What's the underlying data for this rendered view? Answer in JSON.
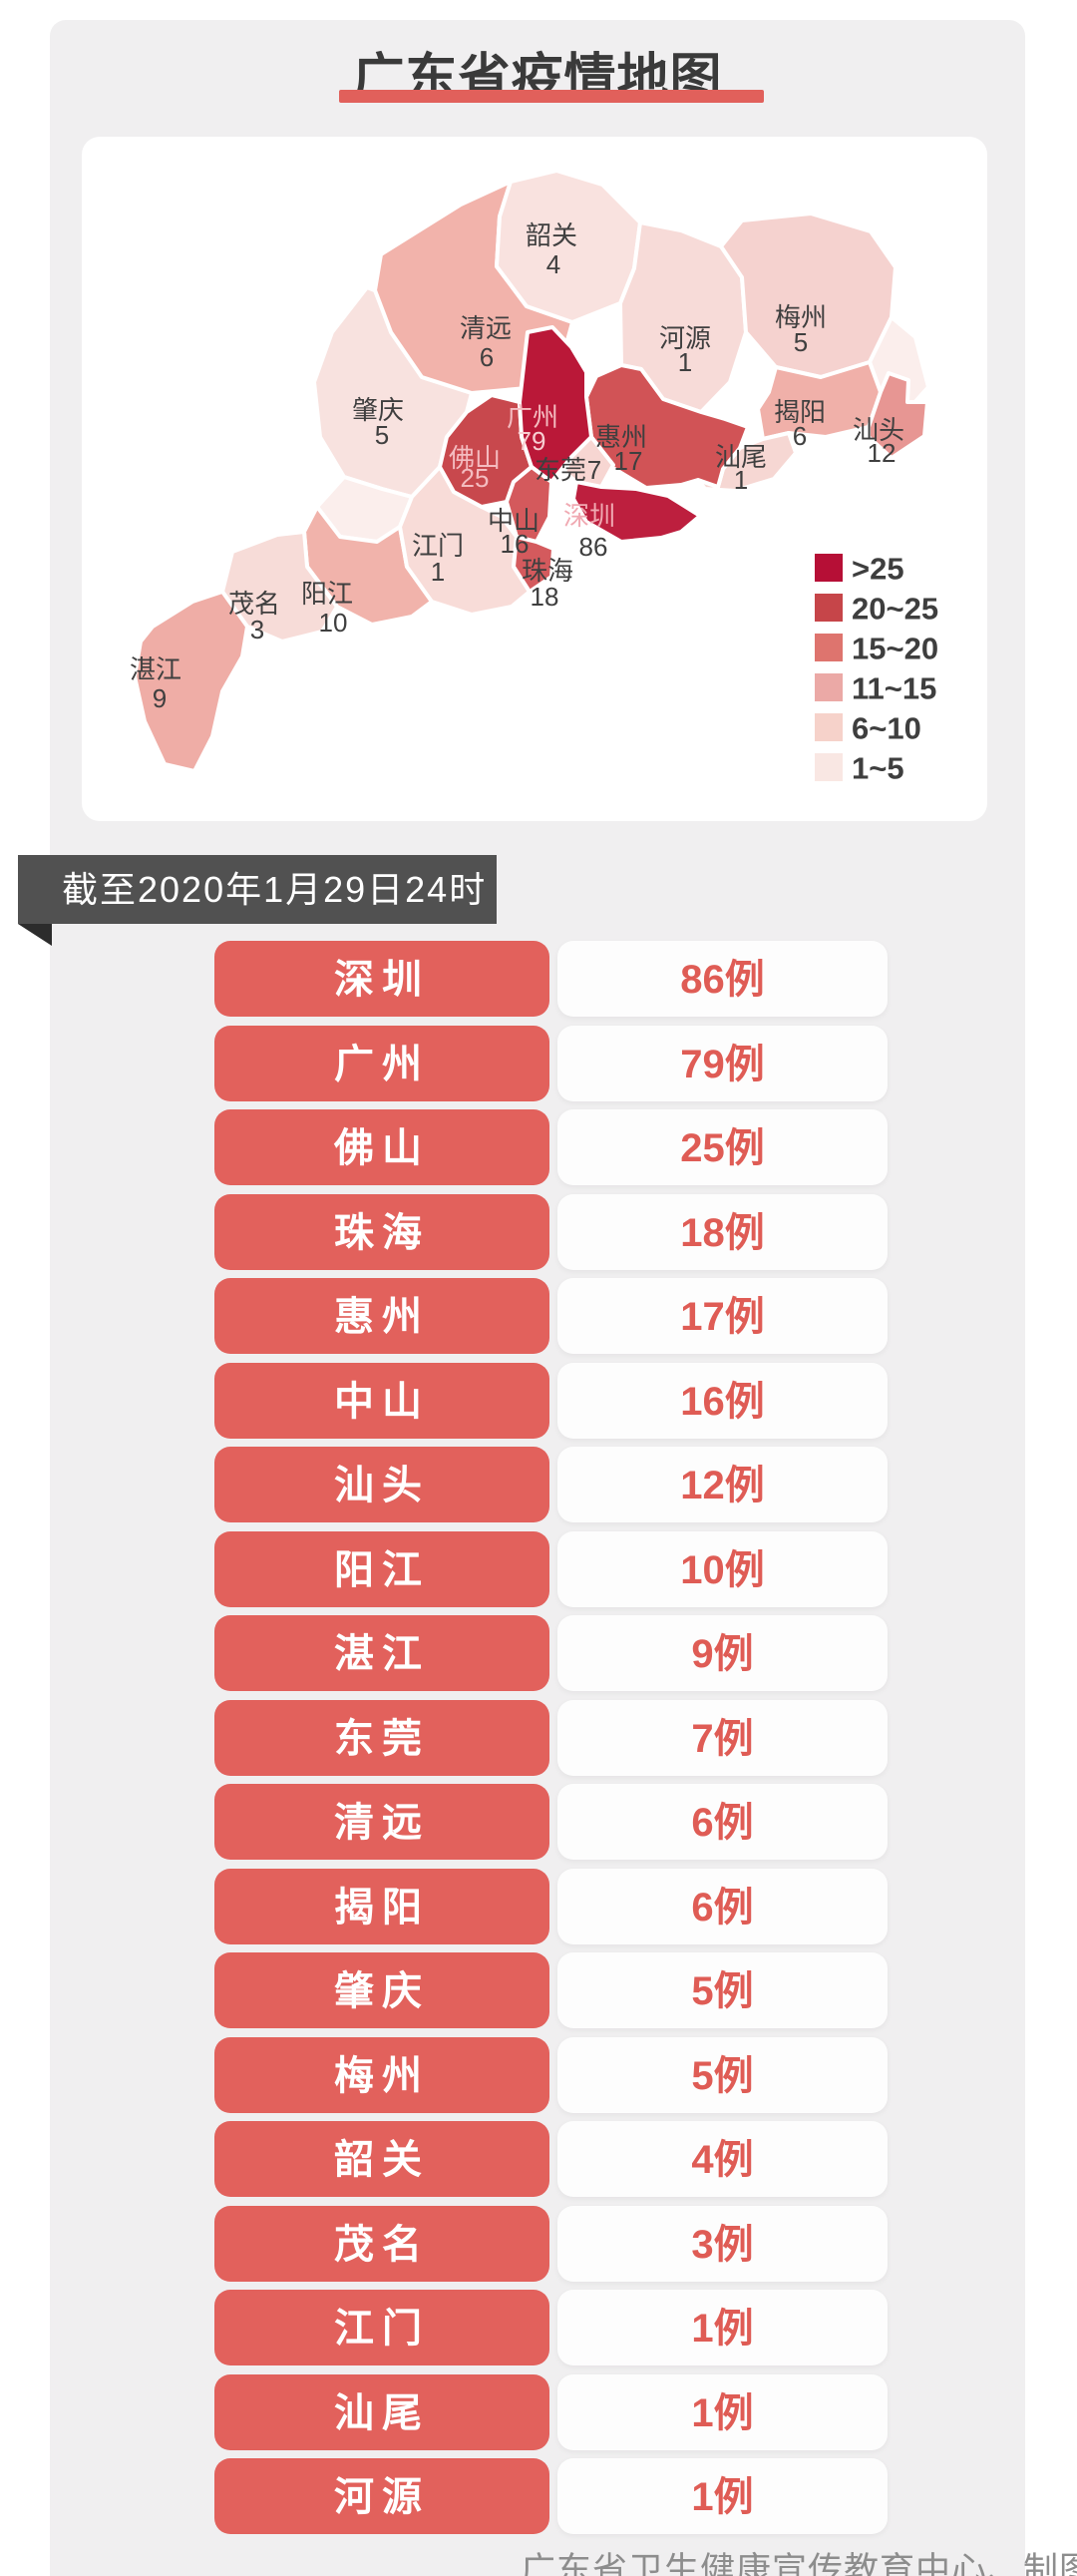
{
  "page": {
    "background": "#ffffff",
    "canvas_color": "#f0eff0"
  },
  "title": {
    "text": "广东省疫情地图",
    "color": "#3a3a3a",
    "underline_color": "#e1605b"
  },
  "banner": {
    "text": "截至2020年1月29日24时",
    "background": "#515151",
    "fold_color": "#2c2c2c",
    "text_color": "#ffffff"
  },
  "legend": {
    "text_color": "#3e3e3e",
    "items": [
      {
        "label": ">25",
        "color": "#b60f36"
      },
      {
        "label": "20~25",
        "color": "#c64549"
      },
      {
        "label": "15~20",
        "color": "#de746e"
      },
      {
        "label": "11~15",
        "color": "#eba9a6"
      },
      {
        "label": "6~10",
        "color": "#f6d2ca"
      },
      {
        "label": "1~5",
        "color": "#f9e7e3"
      }
    ]
  },
  "map": {
    "unlabeled_fill": "#fbeeec",
    "default_label_color": "#3f3f3f",
    "regions": [
      {
        "key": "shaoguan",
        "name": "韶关",
        "value": "4",
        "fill": "#f9e2df"
      },
      {
        "key": "qingyuan",
        "name": "清远",
        "value": "6",
        "fill": "#f2b3ab"
      },
      {
        "key": "heyuan",
        "name": "河源",
        "value": "1",
        "fill": "#f7dbd8"
      },
      {
        "key": "meizhou",
        "name": "梅州",
        "value": "5",
        "fill": "#f5d2cf"
      },
      {
        "key": "jieyang",
        "name": "揭阳",
        "value": "6",
        "fill": "#f0b0a9"
      },
      {
        "key": "shantou",
        "name": "汕头",
        "value": "12",
        "fill": "#e79693"
      },
      {
        "key": "shanwei",
        "name": "汕尾",
        "value": "1",
        "fill": "#f6d7d3"
      },
      {
        "key": "huizhou",
        "name": "惠州",
        "value": "17",
        "fill": "#d15356"
      },
      {
        "key": "guangzhou",
        "name": "广州",
        "value": "79",
        "fill": "#ba1838",
        "name_color": "#f4bcc0",
        "value_color": "#f7cdd1"
      },
      {
        "key": "dongguan",
        "name": "东莞",
        "value": "7",
        "fill": "#f7d6d2"
      },
      {
        "key": "shenzhen",
        "name": "深圳",
        "value": "86",
        "fill": "#bd1f3e",
        "name_color": "#f0a9b2"
      },
      {
        "key": "zhongshan",
        "name": "中山",
        "value": "16",
        "fill": "#d4595c"
      },
      {
        "key": "zhuhai",
        "name": "珠海",
        "value": "18",
        "fill": "#d45a5d"
      },
      {
        "key": "foshan",
        "name": "佛山",
        "value": "25",
        "fill": "#c8484d",
        "name_color": "#f4bcc0",
        "value_color": "#f4bcc0"
      },
      {
        "key": "jiangmen",
        "name": "江门",
        "value": "1",
        "fill": "#f8dcd8"
      },
      {
        "key": "zhaoqing",
        "name": "肇庆",
        "value": "5",
        "fill": "#f8e2df"
      },
      {
        "key": "yangjiang",
        "name": "阳江",
        "value": "10",
        "fill": "#f1b3ab"
      },
      {
        "key": "maoming",
        "name": "茂名",
        "value": "3",
        "fill": "#f7dcd8"
      },
      {
        "key": "zhanjiang",
        "name": "湛江",
        "value": "9",
        "fill": "#efada6"
      }
    ]
  },
  "table": {
    "box_color": "#e2615c",
    "count_color": "#df5c55",
    "rows": [
      {
        "city": "深圳",
        "cases": "86例"
      },
      {
        "city": "广州",
        "cases": "79例"
      },
      {
        "city": "佛山",
        "cases": "25例"
      },
      {
        "city": "珠海",
        "cases": "18例"
      },
      {
        "city": "惠州",
        "cases": "17例"
      },
      {
        "city": "中山",
        "cases": "16例"
      },
      {
        "city": "汕头",
        "cases": "12例"
      },
      {
        "city": "阳江",
        "cases": "10例"
      },
      {
        "city": "湛江",
        "cases": "9例"
      },
      {
        "city": "东莞",
        "cases": "7例"
      },
      {
        "city": "清远",
        "cases": "6例"
      },
      {
        "city": "揭阳",
        "cases": "6例"
      },
      {
        "city": "肇庆",
        "cases": "5例"
      },
      {
        "city": "梅州",
        "cases": "5例"
      },
      {
        "city": "韶关",
        "cases": "4例"
      },
      {
        "city": "茂名",
        "cases": "3例"
      },
      {
        "city": "江门",
        "cases": "1例"
      },
      {
        "city": "汕尾",
        "cases": "1例"
      },
      {
        "city": "河源",
        "cases": "1例"
      }
    ]
  },
  "footer": {
    "text": "广东省卫生健康宣传教育中心、制图",
    "color": "#8d8d8d"
  },
  "chart_data": {
    "type": "heatmap",
    "subtype": "choropleth-map",
    "title": "广东省疫情地图",
    "as_of": "截至2020年1月29日24时",
    "categories": [
      "深圳",
      "广州",
      "佛山",
      "珠海",
      "惠州",
      "中山",
      "汕头",
      "阳江",
      "湛江",
      "东莞",
      "清远",
      "揭阳",
      "肇庆",
      "梅州",
      "韶关",
      "茂名",
      "江门",
      "汕尾",
      "河源"
    ],
    "values": [
      86,
      79,
      25,
      18,
      17,
      16,
      12,
      10,
      9,
      7,
      6,
      6,
      5,
      5,
      4,
      3,
      1,
      1,
      1
    ],
    "legend_buckets": [
      ">25",
      "20~25",
      "15~20",
      "11~15",
      "6~10",
      "1~5"
    ],
    "legend_position": "bottom-right-of-map"
  }
}
